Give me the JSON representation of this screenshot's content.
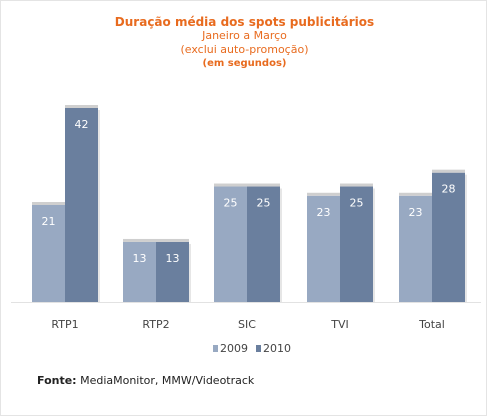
{
  "colors": {
    "title": "#e86b1f",
    "series_2009": "#98a9c2",
    "series_2010": "#6a7f9e",
    "bar_cap": "#cfcfcf",
    "axis_text": "#444444"
  },
  "source": {
    "label": "Fonte:",
    "text": "MediaMonitor, MMW/Videotrack"
  },
  "chart_data": {
    "type": "bar",
    "title": "Duração média dos spots publicitários",
    "subtitle_lines": [
      "Janeiro a Março",
      "(exclui auto-promoção)"
    ],
    "unit": "(em segundos)",
    "categories": [
      "RTP1",
      "RTP2",
      "SIC",
      "TVI",
      "Total"
    ],
    "series": [
      {
        "name": "2009",
        "values": [
          21,
          13,
          25,
          23,
          23
        ]
      },
      {
        "name": "2010",
        "values": [
          42,
          13,
          25,
          25,
          28
        ]
      }
    ],
    "ylim": [
      0,
      42
    ],
    "grid": false,
    "legend_position": "bottom",
    "show_data_labels": true
  }
}
